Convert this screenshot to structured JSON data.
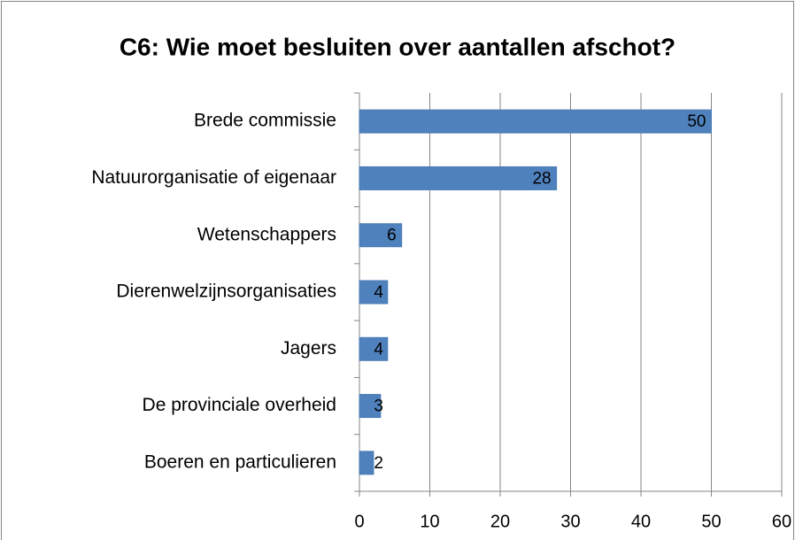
{
  "chart_data": {
    "type": "bar",
    "orientation": "horizontal",
    "title": "C6: Wie moet besluiten over aantallen afschot?",
    "categories": [
      "Brede commissie",
      "Natuurorganisatie of eigenaar",
      "Wetenschappers",
      "Dierenwelzijnsorganisaties",
      "Jagers",
      "De provinciale overheid",
      "Boeren en particulieren"
    ],
    "values": [
      50,
      28,
      6,
      4,
      4,
      3,
      2
    ],
    "color": "#4f81bd",
    "xlim": [
      0,
      60
    ],
    "xticks": [
      0,
      10,
      20,
      30,
      40,
      50,
      60
    ],
    "grid": true
  }
}
